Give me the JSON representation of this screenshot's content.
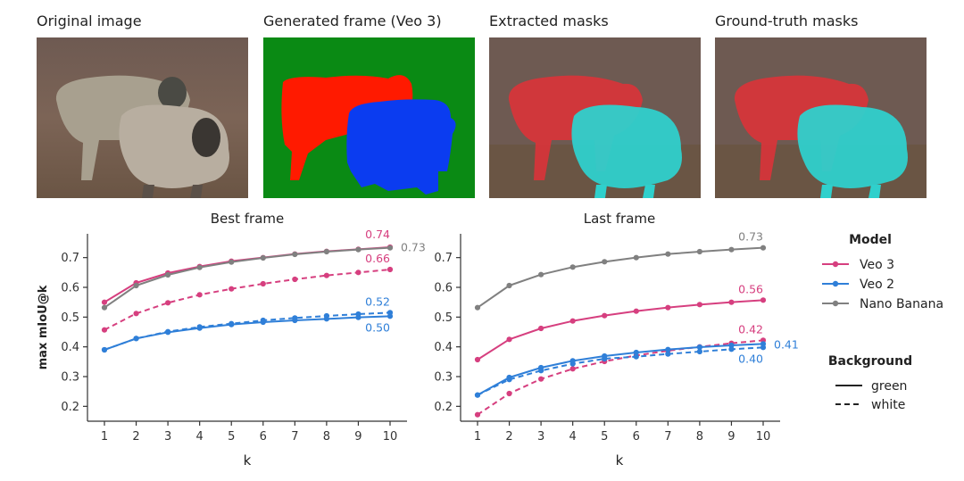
{
  "panels": {
    "original_caption": "Original image",
    "generated_caption": "Generated frame (Veo 3)",
    "extracted_caption": "Extracted masks",
    "groundtruth_caption": "Ground-truth masks"
  },
  "colors": {
    "veo3": "#d63f7f",
    "veo2": "#2f7fd8",
    "nano": "#808080"
  },
  "legend": {
    "model_title": "Model",
    "models": [
      "Veo 3",
      "Veo 2",
      "Nano Banana"
    ],
    "background_title": "Background",
    "backgrounds": [
      "green",
      "white"
    ]
  },
  "chart_data": [
    {
      "type": "line",
      "title": "Best frame",
      "xlabel": "k",
      "ylabel": "max mIoU@k",
      "x": [
        1,
        2,
        3,
        4,
        5,
        6,
        7,
        8,
        9,
        10
      ],
      "ylim": [
        0.15,
        0.78
      ],
      "yticks": [
        0.2,
        0.3,
        0.4,
        0.5,
        0.6,
        0.7
      ],
      "series": [
        {
          "name": "Veo 3",
          "background": "green",
          "values": [
            0.55,
            0.615,
            0.648,
            0.67,
            0.688,
            0.7,
            0.712,
            0.721,
            0.728,
            0.735
          ]
        },
        {
          "name": "Veo 3",
          "background": "white",
          "values": [
            0.457,
            0.512,
            0.548,
            0.575,
            0.595,
            0.612,
            0.627,
            0.64,
            0.65,
            0.66
          ]
        },
        {
          "name": "Nano Banana",
          "background": "green",
          "values": [
            0.532,
            0.606,
            0.642,
            0.667,
            0.685,
            0.699,
            0.711,
            0.72,
            0.727,
            0.733
          ]
        },
        {
          "name": "Veo 2",
          "background": "green",
          "values": [
            0.39,
            0.428,
            0.449,
            0.463,
            0.475,
            0.483,
            0.489,
            0.494,
            0.499,
            0.503
          ]
        },
        {
          "name": "Veo 2",
          "background": "white",
          "values": [
            0.39,
            0.428,
            0.451,
            0.467,
            0.478,
            0.489,
            0.497,
            0.504,
            0.51,
            0.515
          ]
        }
      ],
      "end_labels": [
        {
          "text": "0.74",
          "color": "veo3"
        },
        {
          "text": "0.73",
          "color": "nano"
        },
        {
          "text": "0.66",
          "color": "veo3"
        },
        {
          "text": "0.52",
          "color": "veo2"
        },
        {
          "text": "0.50",
          "color": "veo2"
        }
      ]
    },
    {
      "type": "line",
      "title": "Last frame",
      "xlabel": "k",
      "ylabel": "",
      "x": [
        1,
        2,
        3,
        4,
        5,
        6,
        7,
        8,
        9,
        10
      ],
      "ylim": [
        0.15,
        0.78
      ],
      "yticks": [
        0.2,
        0.3,
        0.4,
        0.5,
        0.6,
        0.7
      ],
      "series": [
        {
          "name": "Nano Banana",
          "background": "green",
          "values": [
            0.532,
            0.606,
            0.643,
            0.668,
            0.686,
            0.7,
            0.712,
            0.72,
            0.727,
            0.733
          ]
        },
        {
          "name": "Veo 3",
          "background": "green",
          "values": [
            0.357,
            0.425,
            0.462,
            0.487,
            0.505,
            0.52,
            0.532,
            0.542,
            0.55,
            0.557
          ]
        },
        {
          "name": "Veo 3",
          "background": "white",
          "values": [
            0.172,
            0.243,
            0.292,
            0.326,
            0.351,
            0.371,
            0.387,
            0.4,
            0.412,
            0.422
          ]
        },
        {
          "name": "Veo 2",
          "background": "green",
          "values": [
            0.238,
            0.297,
            0.33,
            0.353,
            0.369,
            0.381,
            0.391,
            0.399,
            0.405,
            0.41
          ]
        },
        {
          "name": "Veo 2",
          "background": "white",
          "values": [
            0.238,
            0.29,
            0.32,
            0.343,
            0.36,
            0.367,
            0.376,
            0.384,
            0.392,
            0.398
          ]
        }
      ],
      "end_labels": [
        {
          "text": "0.73",
          "color": "nano"
        },
        {
          "text": "0.56",
          "color": "veo3"
        },
        {
          "text": "0.42",
          "color": "veo3"
        },
        {
          "text": "0.41",
          "color": "veo2"
        },
        {
          "text": "0.40",
          "color": "veo2"
        }
      ]
    }
  ]
}
